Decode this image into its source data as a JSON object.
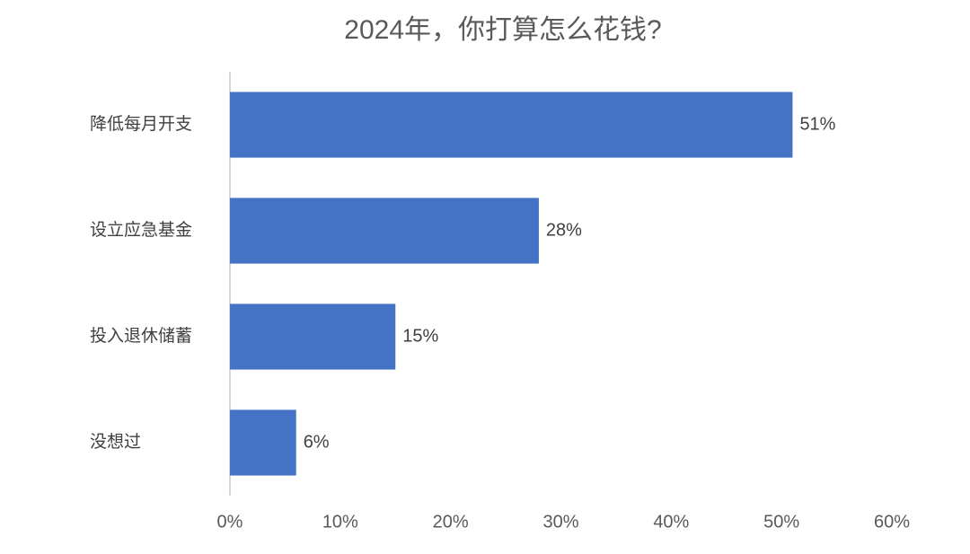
{
  "chart_data": {
    "type": "bar",
    "orientation": "horizontal",
    "title": "2024年，你打算怎么花钱?",
    "categories": [
      "降低每月开支",
      "设立应急基金",
      "投入退休储蓄",
      "没想过"
    ],
    "values": [
      51,
      28,
      15,
      6
    ],
    "value_labels": [
      "51%",
      "28%",
      "15%",
      "6%"
    ],
    "color": "#4472c4",
    "xlim": [
      0,
      60
    ],
    "xticks": [
      {
        "value": 0,
        "label": "0%"
      },
      {
        "value": 10,
        "label": "10%"
      },
      {
        "value": 20,
        "label": "20%"
      },
      {
        "value": 30,
        "label": "30%"
      },
      {
        "value": 40,
        "label": "40%"
      },
      {
        "value": 50,
        "label": "50%"
      },
      {
        "value": 60,
        "label": "60%"
      }
    ],
    "grid": false
  }
}
